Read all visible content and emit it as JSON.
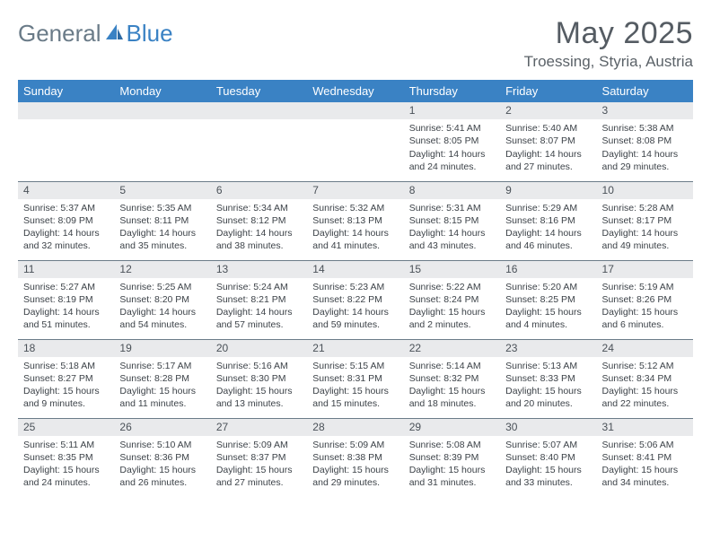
{
  "logo": {
    "word1": "General",
    "word2": "Blue"
  },
  "title": "May 2025",
  "location": "Troessing, Styria, Austria",
  "colors": {
    "header_bg": "#3a82c4",
    "header_text": "#ffffff",
    "daynum_bg": "#e9eaec",
    "border": "#6b7b88",
    "body_text": "#3c4248",
    "title_text": "#555c63"
  },
  "weekdays": [
    "Sunday",
    "Monday",
    "Tuesday",
    "Wednesday",
    "Thursday",
    "Friday",
    "Saturday"
  ],
  "weeks": [
    [
      {
        "n": "",
        "sr": "",
        "ss": "",
        "d1": "",
        "d2": ""
      },
      {
        "n": "",
        "sr": "",
        "ss": "",
        "d1": "",
        "d2": ""
      },
      {
        "n": "",
        "sr": "",
        "ss": "",
        "d1": "",
        "d2": ""
      },
      {
        "n": "",
        "sr": "",
        "ss": "",
        "d1": "",
        "d2": ""
      },
      {
        "n": "1",
        "sr": "Sunrise: 5:41 AM",
        "ss": "Sunset: 8:05 PM",
        "d1": "Daylight: 14 hours",
        "d2": "and 24 minutes."
      },
      {
        "n": "2",
        "sr": "Sunrise: 5:40 AM",
        "ss": "Sunset: 8:07 PM",
        "d1": "Daylight: 14 hours",
        "d2": "and 27 minutes."
      },
      {
        "n": "3",
        "sr": "Sunrise: 5:38 AM",
        "ss": "Sunset: 8:08 PM",
        "d1": "Daylight: 14 hours",
        "d2": "and 29 minutes."
      }
    ],
    [
      {
        "n": "4",
        "sr": "Sunrise: 5:37 AM",
        "ss": "Sunset: 8:09 PM",
        "d1": "Daylight: 14 hours",
        "d2": "and 32 minutes."
      },
      {
        "n": "5",
        "sr": "Sunrise: 5:35 AM",
        "ss": "Sunset: 8:11 PM",
        "d1": "Daylight: 14 hours",
        "d2": "and 35 minutes."
      },
      {
        "n": "6",
        "sr": "Sunrise: 5:34 AM",
        "ss": "Sunset: 8:12 PM",
        "d1": "Daylight: 14 hours",
        "d2": "and 38 minutes."
      },
      {
        "n": "7",
        "sr": "Sunrise: 5:32 AM",
        "ss": "Sunset: 8:13 PM",
        "d1": "Daylight: 14 hours",
        "d2": "and 41 minutes."
      },
      {
        "n": "8",
        "sr": "Sunrise: 5:31 AM",
        "ss": "Sunset: 8:15 PM",
        "d1": "Daylight: 14 hours",
        "d2": "and 43 minutes."
      },
      {
        "n": "9",
        "sr": "Sunrise: 5:29 AM",
        "ss": "Sunset: 8:16 PM",
        "d1": "Daylight: 14 hours",
        "d2": "and 46 minutes."
      },
      {
        "n": "10",
        "sr": "Sunrise: 5:28 AM",
        "ss": "Sunset: 8:17 PM",
        "d1": "Daylight: 14 hours",
        "d2": "and 49 minutes."
      }
    ],
    [
      {
        "n": "11",
        "sr": "Sunrise: 5:27 AM",
        "ss": "Sunset: 8:19 PM",
        "d1": "Daylight: 14 hours",
        "d2": "and 51 minutes."
      },
      {
        "n": "12",
        "sr": "Sunrise: 5:25 AM",
        "ss": "Sunset: 8:20 PM",
        "d1": "Daylight: 14 hours",
        "d2": "and 54 minutes."
      },
      {
        "n": "13",
        "sr": "Sunrise: 5:24 AM",
        "ss": "Sunset: 8:21 PM",
        "d1": "Daylight: 14 hours",
        "d2": "and 57 minutes."
      },
      {
        "n": "14",
        "sr": "Sunrise: 5:23 AM",
        "ss": "Sunset: 8:22 PM",
        "d1": "Daylight: 14 hours",
        "d2": "and 59 minutes."
      },
      {
        "n": "15",
        "sr": "Sunrise: 5:22 AM",
        "ss": "Sunset: 8:24 PM",
        "d1": "Daylight: 15 hours",
        "d2": "and 2 minutes."
      },
      {
        "n": "16",
        "sr": "Sunrise: 5:20 AM",
        "ss": "Sunset: 8:25 PM",
        "d1": "Daylight: 15 hours",
        "d2": "and 4 minutes."
      },
      {
        "n": "17",
        "sr": "Sunrise: 5:19 AM",
        "ss": "Sunset: 8:26 PM",
        "d1": "Daylight: 15 hours",
        "d2": "and 6 minutes."
      }
    ],
    [
      {
        "n": "18",
        "sr": "Sunrise: 5:18 AM",
        "ss": "Sunset: 8:27 PM",
        "d1": "Daylight: 15 hours",
        "d2": "and 9 minutes."
      },
      {
        "n": "19",
        "sr": "Sunrise: 5:17 AM",
        "ss": "Sunset: 8:28 PM",
        "d1": "Daylight: 15 hours",
        "d2": "and 11 minutes."
      },
      {
        "n": "20",
        "sr": "Sunrise: 5:16 AM",
        "ss": "Sunset: 8:30 PM",
        "d1": "Daylight: 15 hours",
        "d2": "and 13 minutes."
      },
      {
        "n": "21",
        "sr": "Sunrise: 5:15 AM",
        "ss": "Sunset: 8:31 PM",
        "d1": "Daylight: 15 hours",
        "d2": "and 15 minutes."
      },
      {
        "n": "22",
        "sr": "Sunrise: 5:14 AM",
        "ss": "Sunset: 8:32 PM",
        "d1": "Daylight: 15 hours",
        "d2": "and 18 minutes."
      },
      {
        "n": "23",
        "sr": "Sunrise: 5:13 AM",
        "ss": "Sunset: 8:33 PM",
        "d1": "Daylight: 15 hours",
        "d2": "and 20 minutes."
      },
      {
        "n": "24",
        "sr": "Sunrise: 5:12 AM",
        "ss": "Sunset: 8:34 PM",
        "d1": "Daylight: 15 hours",
        "d2": "and 22 minutes."
      }
    ],
    [
      {
        "n": "25",
        "sr": "Sunrise: 5:11 AM",
        "ss": "Sunset: 8:35 PM",
        "d1": "Daylight: 15 hours",
        "d2": "and 24 minutes."
      },
      {
        "n": "26",
        "sr": "Sunrise: 5:10 AM",
        "ss": "Sunset: 8:36 PM",
        "d1": "Daylight: 15 hours",
        "d2": "and 26 minutes."
      },
      {
        "n": "27",
        "sr": "Sunrise: 5:09 AM",
        "ss": "Sunset: 8:37 PM",
        "d1": "Daylight: 15 hours",
        "d2": "and 27 minutes."
      },
      {
        "n": "28",
        "sr": "Sunrise: 5:09 AM",
        "ss": "Sunset: 8:38 PM",
        "d1": "Daylight: 15 hours",
        "d2": "and 29 minutes."
      },
      {
        "n": "29",
        "sr": "Sunrise: 5:08 AM",
        "ss": "Sunset: 8:39 PM",
        "d1": "Daylight: 15 hours",
        "d2": "and 31 minutes."
      },
      {
        "n": "30",
        "sr": "Sunrise: 5:07 AM",
        "ss": "Sunset: 8:40 PM",
        "d1": "Daylight: 15 hours",
        "d2": "and 33 minutes."
      },
      {
        "n": "31",
        "sr": "Sunrise: 5:06 AM",
        "ss": "Sunset: 8:41 PM",
        "d1": "Daylight: 15 hours",
        "d2": "and 34 minutes."
      }
    ]
  ]
}
